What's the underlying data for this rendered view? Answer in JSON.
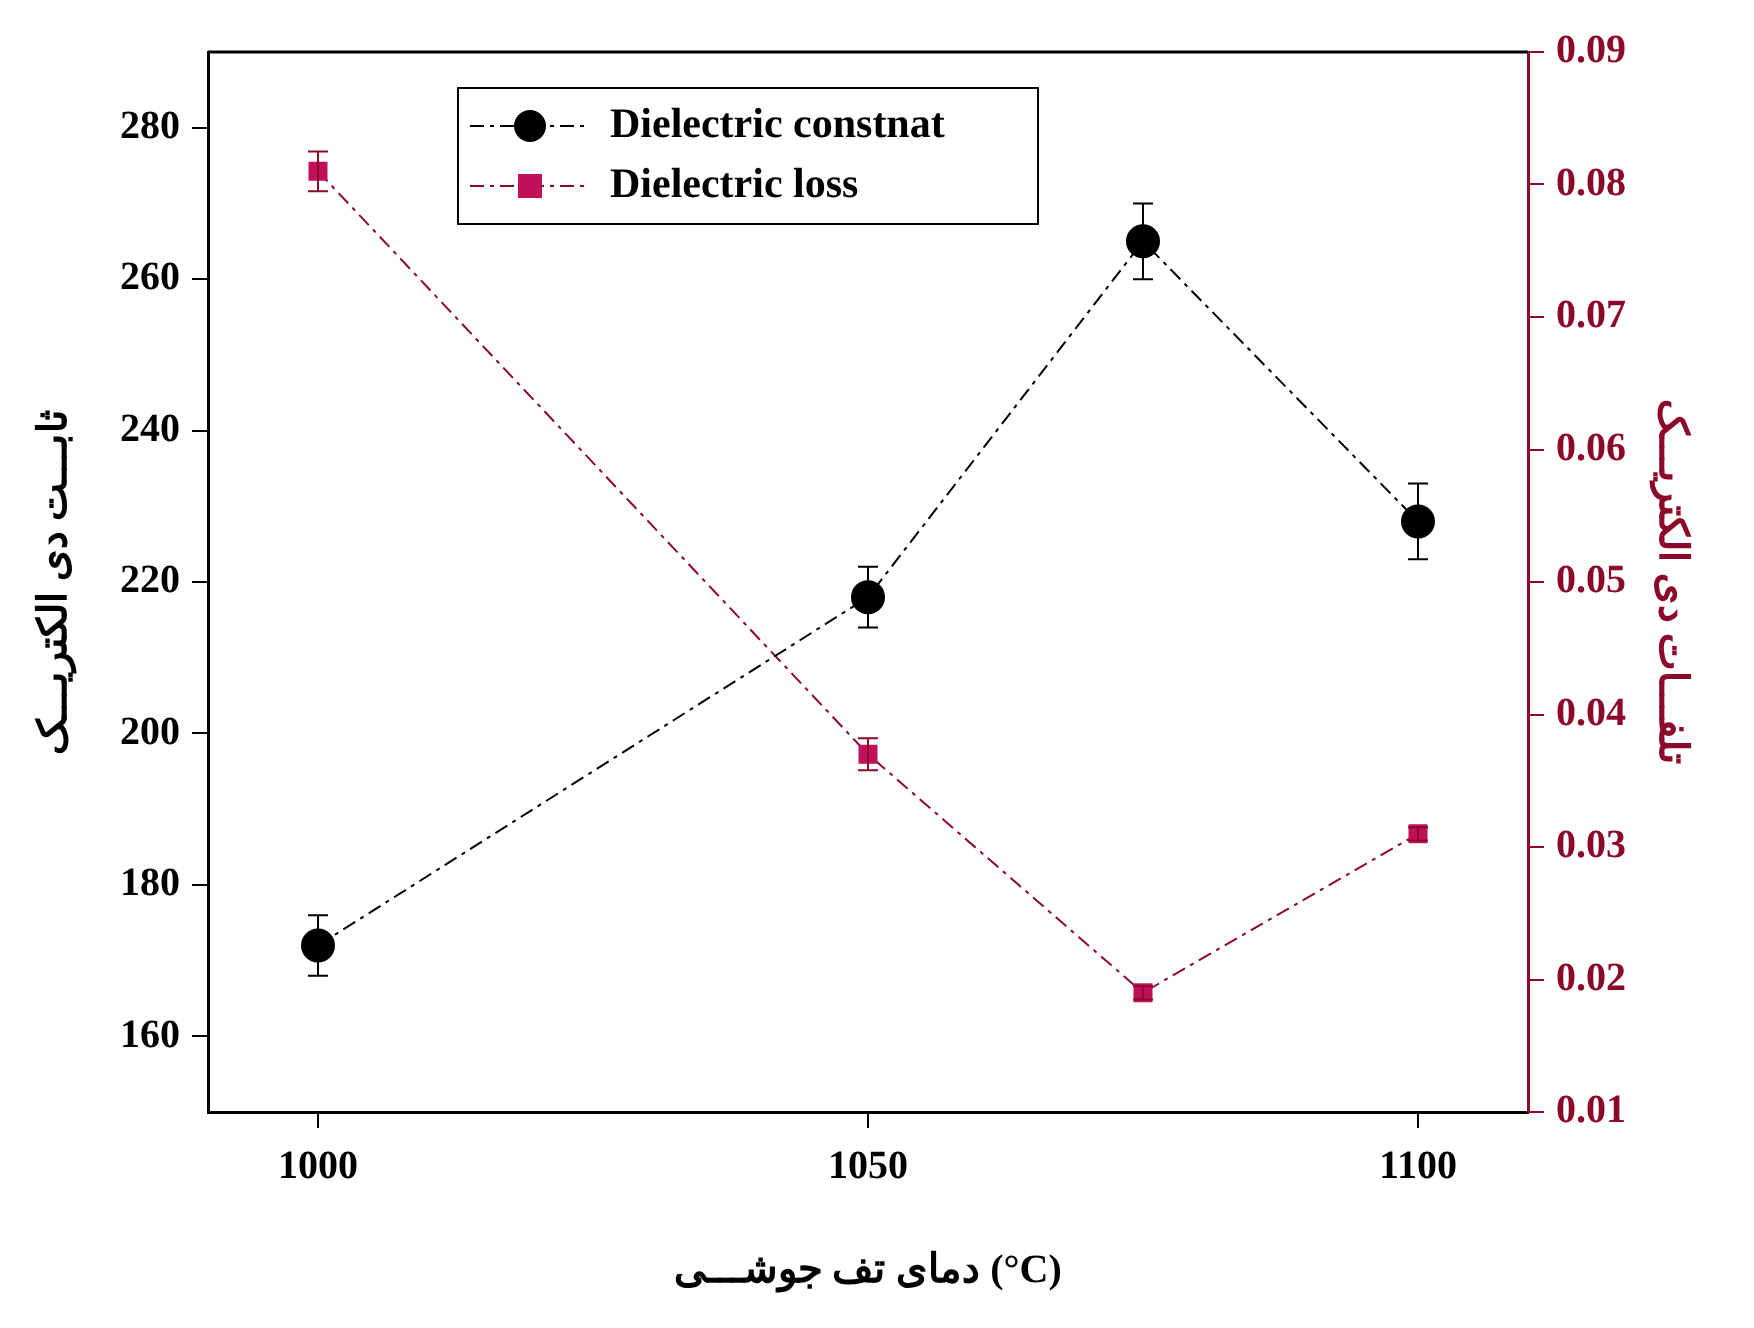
{
  "chart_data": {
    "type": "line",
    "xlabel": "دمای تف جوشـــی (°C)",
    "ylabel": "ثابـــت دی الکتریـــک",
    "y2label": "تلفـــات دی الکتریـــک",
    "x": [
      1000,
      1050,
      1075,
      1100
    ],
    "xlim": [
      990,
      1110
    ],
    "xticks": [
      1000,
      1050,
      1100
    ],
    "ylim": [
      150,
      290
    ],
    "yticks": [
      160,
      180,
      200,
      220,
      240,
      260,
      280
    ],
    "y2lim": [
      0.01,
      0.09
    ],
    "y2ticks": [
      0.01,
      0.02,
      0.03,
      0.04,
      0.05,
      0.06,
      0.07,
      0.08,
      0.09
    ],
    "series": [
      {
        "name": "Dielectric constnat",
        "color": "#000000",
        "values": [
          172,
          218,
          265,
          228
        ],
        "errors": [
          4,
          4,
          5,
          5
        ],
        "marker": "circle"
      },
      {
        "name": "Dielectric loss",
        "color": "#c0105a",
        "axis": "y2",
        "values": [
          0.081,
          0.037,
          0.019,
          0.031
        ],
        "errors": [
          0.0015,
          0.0012,
          0.0005,
          0.0005
        ],
        "marker": "square"
      }
    ],
    "legend": "top left",
    "grid": false,
    "line_style": "dashed"
  }
}
